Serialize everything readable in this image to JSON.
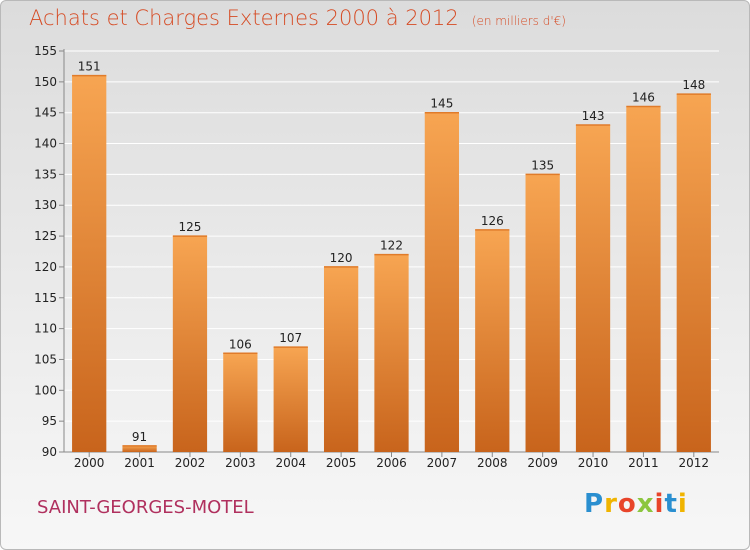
{
  "header": {
    "title": "Achats et Charges Externes 2000 à 2012",
    "unit": "(en milliers d'€)"
  },
  "footer": {
    "commune": "SAINT-GEORGES-MOTEL",
    "logo": "Proxiti",
    "logo_colors": [
      "#2a8fd0",
      "#f0b400",
      "#e8442a",
      "#8cc63f",
      "#e8442a",
      "#2a8fd0",
      "#f0b400"
    ]
  },
  "chart_data": {
    "type": "bar",
    "categories": [
      "2000",
      "2001",
      "2002",
      "2003",
      "2004",
      "2005",
      "2006",
      "2007",
      "2008",
      "2009",
      "2010",
      "2011",
      "2012"
    ],
    "values": [
      151,
      91,
      125,
      106,
      107,
      120,
      122,
      145,
      126,
      135,
      143,
      146,
      148
    ],
    "value_labels": [
      "151",
      "91",
      "125",
      "106",
      "107",
      "120",
      "122",
      "145",
      "126",
      "135",
      "143",
      "146",
      "148"
    ],
    "title": "Achats et Charges Externes 2000 à 2012",
    "ylim": [
      90,
      155
    ],
    "yticks": [
      90,
      95,
      100,
      105,
      110,
      115,
      120,
      125,
      130,
      135,
      140,
      145,
      150,
      155
    ],
    "grid": true,
    "bar_color_top": "#f7a552",
    "bar_color_bottom": "#c8641c",
    "axis_color": "#888888"
  }
}
